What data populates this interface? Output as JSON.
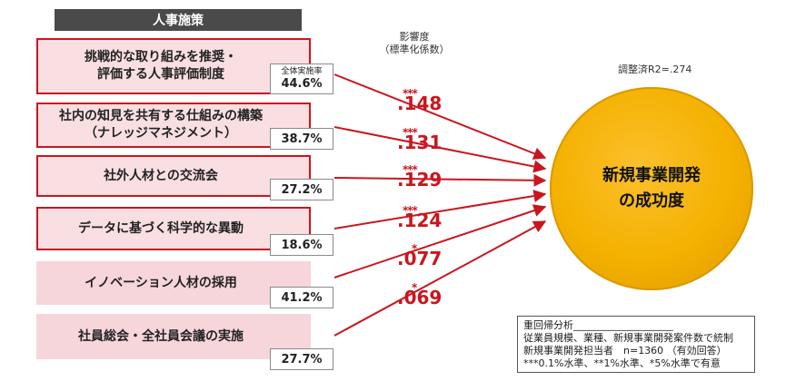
{
  "header": {
    "title": "人事施策"
  },
  "influence_label": {
    "line1": "影響度",
    "line2": "（標準化係数）"
  },
  "r2_label": "調整済R2=.274",
  "outcome": {
    "line1": "新規事業開発",
    "line2": "の成功度"
  },
  "pct_caption": "全体実施率",
  "measures": [
    {
      "line1": "挑戦的な取り組みを推奨・",
      "line2": "評価する人事評価制度",
      "percent": "44.6%",
      "coef": ".148",
      "stars": "***",
      "highlight": true
    },
    {
      "line1": "社内の知見を共有する仕組みの構築",
      "line2": "（ナレッジマネジメント）",
      "percent": "38.7%",
      "coef": ".131",
      "stars": "***",
      "highlight": true
    },
    {
      "line1": "社外人材との交流会",
      "line2": "",
      "percent": "27.2%",
      "coef": ".129",
      "stars": "***",
      "highlight": true
    },
    {
      "line1": "データに基づく科学的な異動",
      "line2": "",
      "percent": "18.6%",
      "coef": ".124",
      "stars": "***",
      "highlight": true
    },
    {
      "line1": "イノベーション人材の採用",
      "line2": "",
      "percent": "41.2%",
      "coef": ".077",
      "stars": "*",
      "highlight": false
    },
    {
      "line1": "社員総会・全社員会議の実施",
      "line2": "",
      "percent": "27.7%",
      "coef": ".069",
      "stars": "*",
      "highlight": false
    }
  ],
  "note": {
    "line1": "重回帰分析____________________",
    "line2": "従業員規模、業種、新規事業開発案件数で統制",
    "line3": "新規事業開発担当者　n=1360 （有効回答）",
    "line4": "***0.1%水準、**1%水準、*5%水準で有意"
  },
  "colors": {
    "accent_red": "#c9161e",
    "box_fill": "#f9dfe2",
    "circle": "#f5b100",
    "header_bg": "#4a4a4a"
  }
}
